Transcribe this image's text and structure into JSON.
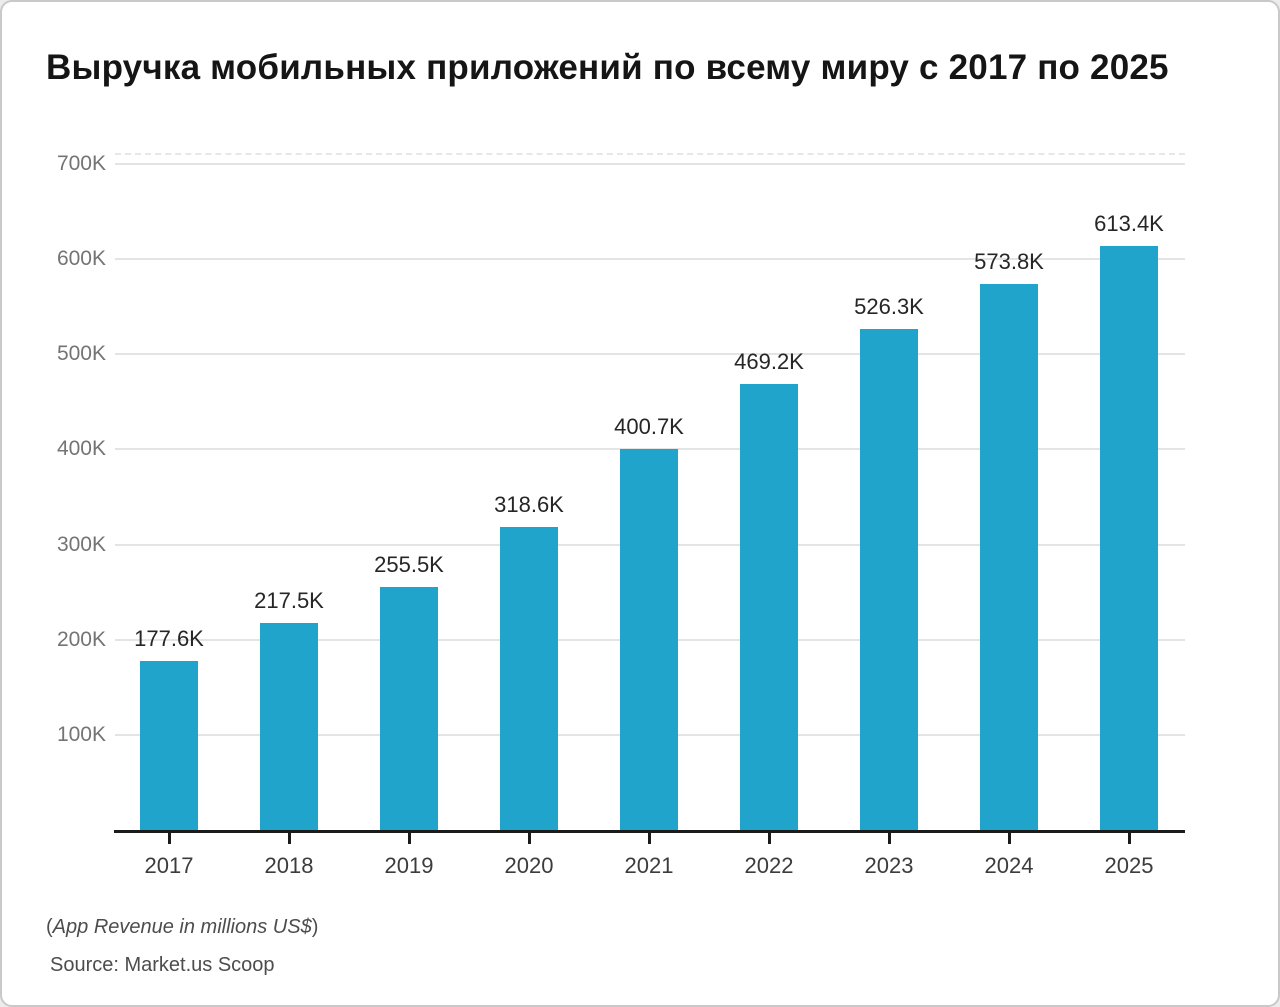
{
  "title": "Выручка мобильных приложений по всему миру с 2017 по 2025",
  "chart_data": {
    "type": "bar",
    "title": "Выручка мобильных приложений по всему миру с 2017 по 2025",
    "categories": [
      "2017",
      "2018",
      "2019",
      "2020",
      "2021",
      "2022",
      "2023",
      "2024",
      "2025"
    ],
    "values": [
      177.6,
      217.5,
      255.5,
      318.6,
      400.7,
      469.2,
      526.3,
      573.8,
      613.4
    ],
    "value_unit": "K",
    "value_labels": [
      "177.6K",
      "217.5K",
      "255.5K",
      "318.6K",
      "400.7K",
      "469.2K",
      "526.3K",
      "573.8K",
      "613.4K"
    ],
    "xlabel": "",
    "ylabel": "App Revenue in millions US$",
    "ylim": [
      0,
      700
    ],
    "y_tick_values": [
      100,
      200,
      300,
      400,
      500,
      600,
      700
    ],
    "y_tick_labels": [
      "100K",
      "200K",
      "300K",
      "400K",
      "500K",
      "600K",
      "700K"
    ],
    "grid": true,
    "legend": false,
    "bar_color": "#21a4cc",
    "grid_color": "#e4e4e4",
    "axis_color": "#1b1b1b"
  },
  "footer": {
    "note_open": "(",
    "note_text": "App Revenue in millions US$",
    "note_close": ")",
    "source": "Source: Market.us Scoop"
  }
}
